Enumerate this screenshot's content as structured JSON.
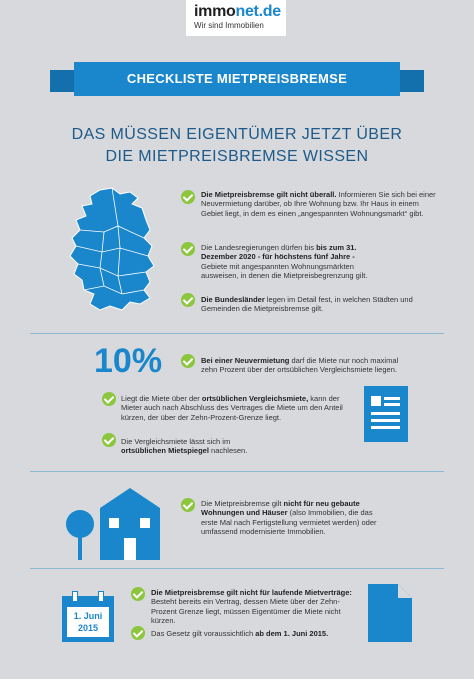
{
  "logo": {
    "brand_a": "immo",
    "brand_b": "net.de",
    "tagline": "Wir sind Immobilien"
  },
  "banner": {
    "title": "CHECKLISTE MIETPREISBREMSE"
  },
  "headline": {
    "line1": "DAS MÜSSEN EIGENTÜMER JETZT ÜBER",
    "line2": "DIE MIETPREISBREMSE WISSEN"
  },
  "section1": [
    {
      "bold": "Die Mietpreisbremse gilt nicht überall.",
      "text": " Informieren Sie sich bei einer Neuvermietung darüber, ob Ihre Wohnung bzw. Ihr Haus in einem Gebiet liegt, in dem es einen „angespannten Wohnungsmarkt“ gibt."
    },
    {
      "pre": "Die Landesregierungen dürfen bis ",
      "bold": "bis zum 31. Dezember 2020 - für höchstens fünf Jahre -",
      "text": " Gebiete mit angespannten Wohnungsmärkten ausweisen, in denen die Mietpreisbegrenzung gilt."
    },
    {
      "bold": "Die Bundesländer",
      "text": " legen im Detail fest, in welchen Städten und Gemeinden die Mietpreisbremse gilt."
    }
  ],
  "section2": {
    "percent": "10%",
    "items": [
      {
        "bold": "Bei einer Neuvermietung",
        "text": " darf die Miete nur noch maximal zehn Prozent über der ortsüblichen Vergleichsmiete liegen."
      },
      {
        "pre": "Liegt die Miete über der ",
        "bold": "ortsüblichen Vergleichsmiete,",
        "text": " kann der Mieter auch nach Abschluss des Vertrages die Miete um den Anteil kürzen, der über der Zehn-Prozent-Grenze liegt."
      },
      {
        "pre": "Die Vergleichsmiete lässt sich im ",
        "bold": "ortsüblichen Mietspiegel",
        "text": " nachlesen."
      }
    ]
  },
  "section3": {
    "pre": "Die Mietpreisbremse gilt ",
    "bold": "nicht für neu gebaute Wohnungen und Häuser",
    "text": " (also Immobilien, die das erste Mal nach Fertigstellung vermietet werden) oder umfassend modernisierte Immobilien."
  },
  "section4": {
    "date_line1": "1. Juni",
    "date_line2": "2015",
    "items": [
      {
        "bold": "Die Mietpreisbremse gilt nicht für laufende Mietverträge:",
        "text": " Besteht bereits ein Vertrag, dessen Miete über der Zehn-Prozent Grenze liegt, müssen Eigentümer die Miete nicht kürzen."
      },
      {
        "pre": "Das Gesetz gilt voraussichtlich ",
        "bold": "ab dem 1. Juni 2015.",
        "text": ""
      }
    ]
  },
  "colors": {
    "accent": "#1a86cc",
    "check": "#8cc63f",
    "background": "#d7d9dc"
  }
}
